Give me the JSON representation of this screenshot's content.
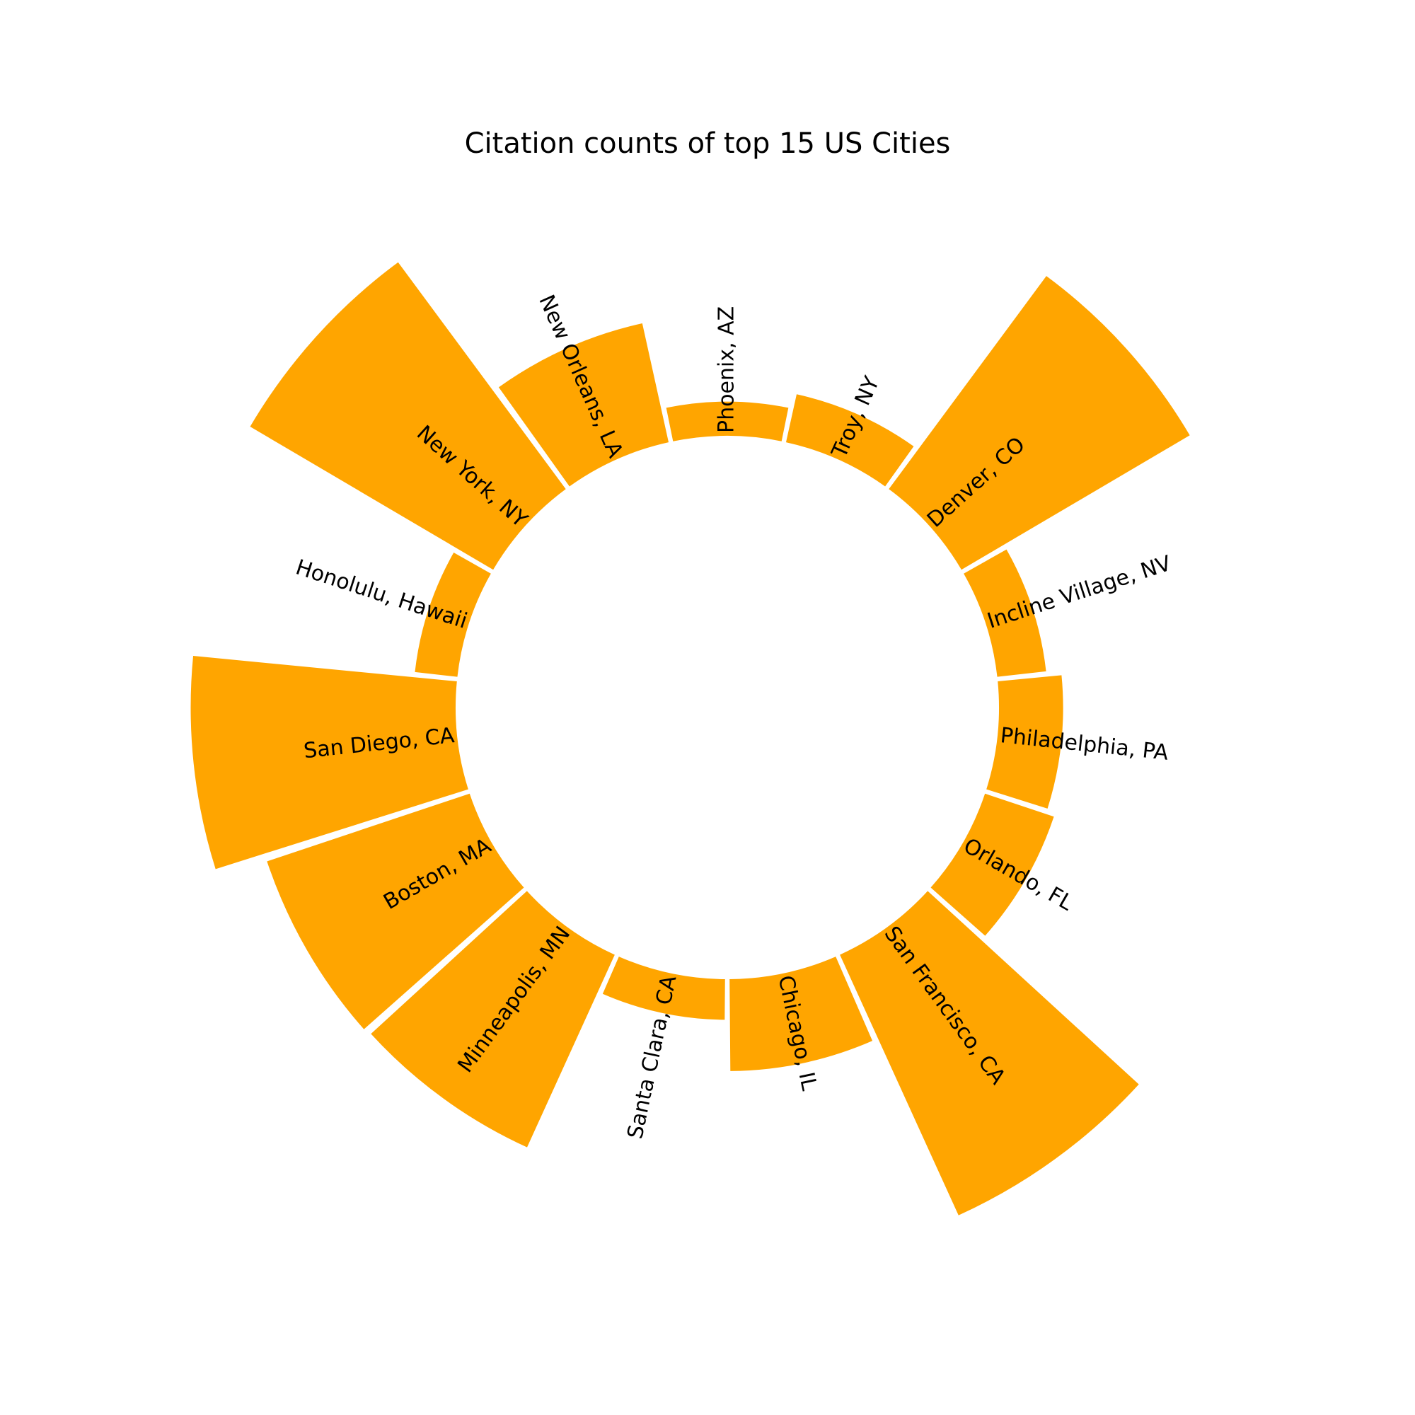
{
  "chart_data": {
    "type": "bar",
    "subtype": "circular-bar",
    "title": "Citation counts of top 15 US Cities",
    "color": "#FFA500",
    "grid": false,
    "legend": "none",
    "start_direction": "north",
    "orientation": "clockwise",
    "categories": [
      "Phoenix, AZ",
      "Troy, NY",
      "Denver, CO",
      "Incline Village, NV",
      "Philadelphia, PA",
      "Orlando, FL",
      "San Francisco, CA",
      "Chicago, IL",
      "Santa Clara, CA",
      "Minneapolis, MN",
      "Boston, MA",
      "San Diego, CA",
      "Honolulu, Hawaii",
      "New York, NY",
      "New Orleans, LA"
    ],
    "values": [
      1.6,
      2.3,
      12.4,
      2.3,
      3.0,
      3.4,
      13.4,
      4.3,
      1.9,
      9.9,
      10.0,
      12.4,
      2.0,
      13.2,
      5.7
    ]
  }
}
